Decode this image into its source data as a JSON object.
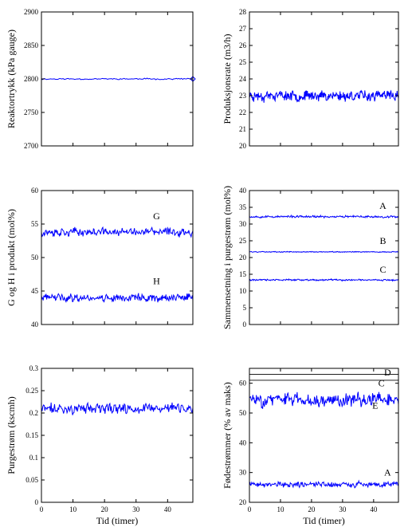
{
  "chart_data": [
    {
      "type": "line",
      "ylabel": "Reaktortrykk (kPa gauge)",
      "xlabel": "",
      "xlim": [
        0,
        48
      ],
      "ylim": [
        2700,
        2900
      ],
      "xticks": [
        0,
        10,
        20,
        30,
        40
      ],
      "xtick_labels": [
        "",
        "",
        "",
        "",
        ""
      ],
      "yticks": [
        2700,
        2750,
        2800,
        2850,
        2900
      ],
      "ytick_labels": [
        "2700",
        "2750",
        "2800",
        "2850",
        "2900"
      ],
      "series": [
        {
          "mean": 2800,
          "amp": 0.9,
          "points": 120,
          "seed": 11,
          "end_marker": "diamond"
        }
      ],
      "annotations": []
    },
    {
      "type": "line",
      "ylabel": "Produksjonsrate (m3/h)",
      "xlabel": "",
      "xlim": [
        0,
        48
      ],
      "ylim": [
        20,
        28
      ],
      "xticks": [
        0,
        10,
        20,
        30,
        40
      ],
      "xtick_labels": [
        "",
        "",
        "",
        "",
        ""
      ],
      "yticks": [
        20,
        21,
        22,
        23,
        24,
        25,
        26,
        27,
        28
      ],
      "ytick_labels": [
        "20",
        "21",
        "22",
        "23",
        "24",
        "25",
        "26",
        "27",
        "28"
      ],
      "series": [
        {
          "mean": 23.0,
          "amp": 0.28,
          "points": 320,
          "seed": 23
        }
      ],
      "annotations": []
    },
    {
      "type": "line",
      "ylabel": "G og H i produkt (mol%)",
      "xlabel": "",
      "xlim": [
        0,
        48
      ],
      "ylim": [
        40,
        60
      ],
      "xticks": [
        0,
        10,
        20,
        30,
        40
      ],
      "xtick_labels": [
        "",
        "",
        "",
        "",
        ""
      ],
      "yticks": [
        40,
        45,
        50,
        55,
        60
      ],
      "ytick_labels": [
        "40",
        "45",
        "50",
        "55",
        "60"
      ],
      "series": [
        {
          "mean": 53.8,
          "amp": 0.55,
          "points": 260,
          "seed": 37
        },
        {
          "mean": 44.0,
          "amp": 0.55,
          "points": 260,
          "seed": 41
        }
      ],
      "annotations": [
        {
          "text": "G",
          "x": 36.5,
          "y": 55.7
        },
        {
          "text": "H",
          "x": 36.5,
          "y": 46.0
        }
      ]
    },
    {
      "type": "line",
      "ylabel": "Sammensetning i purgestrøm (mol%)",
      "xlabel": "",
      "xlim": [
        0,
        48
      ],
      "ylim": [
        0,
        40
      ],
      "xticks": [
        0,
        10,
        20,
        30,
        40
      ],
      "xtick_labels": [
        "",
        "",
        "",
        "",
        ""
      ],
      "yticks": [
        0,
        5,
        10,
        15,
        20,
        25,
        30,
        35,
        40
      ],
      "ytick_labels": [
        "0",
        "5",
        "10",
        "15",
        "20",
        "25",
        "30",
        "35",
        "40"
      ],
      "series": [
        {
          "mean": 32.2,
          "amp": 0.28,
          "points": 300,
          "seed": 53
        },
        {
          "mean": 21.7,
          "amp": 0.12,
          "points": 300,
          "seed": 59
        },
        {
          "mean": 13.3,
          "amp": 0.22,
          "points": 300,
          "seed": 61
        }
      ],
      "annotations": [
        {
          "text": "A",
          "x": 43.0,
          "y": 34.5
        },
        {
          "text": "B",
          "x": 43.0,
          "y": 24.0
        },
        {
          "text": "C",
          "x": 43.0,
          "y": 15.5
        }
      ]
    },
    {
      "type": "line",
      "ylabel": "Purgestrøm (kscmh)",
      "xlabel": "Tid (timer)",
      "xlim": [
        0,
        48
      ],
      "ylim": [
        0,
        0.3
      ],
      "xticks": [
        0,
        10,
        20,
        30,
        40
      ],
      "xtick_labels": [
        "0",
        "10",
        "20",
        "30",
        "40"
      ],
      "yticks": [
        0,
        0.05,
        0.1,
        0.15,
        0.2,
        0.25,
        0.3
      ],
      "ytick_labels": [
        "0",
        "0.05",
        "0.1",
        "0.15",
        "0.2",
        "0.25",
        "0.3"
      ],
      "series": [
        {
          "mean": 0.21,
          "amp": 0.011,
          "points": 220,
          "seed": 71
        }
      ],
      "annotations": []
    },
    {
      "type": "line",
      "ylabel": "Fødestrømmer (% av maks)",
      "xlabel": "Tid (timer)",
      "xlim": [
        0,
        48
      ],
      "ylim": [
        20,
        65
      ],
      "xticks": [
        0,
        10,
        20,
        30,
        40
      ],
      "xtick_labels": [
        "0",
        "10",
        "20",
        "30",
        "40"
      ],
      "yticks": [
        20,
        30,
        40,
        50,
        60
      ],
      "ytick_labels": [
        "20",
        "30",
        "40",
        "50",
        "60"
      ],
      "series": [
        {
          "mean": 63.0,
          "amp": 0.0,
          "points": 2,
          "seed": 1,
          "color": "#000000"
        },
        {
          "mean": 61.0,
          "amp": 0.0,
          "points": 2,
          "seed": 2,
          "color": "#000000"
        },
        {
          "mean": 54.5,
          "amp": 2.0,
          "points": 260,
          "seed": 83
        },
        {
          "mean": 26.0,
          "amp": 0.9,
          "points": 260,
          "seed": 89
        }
      ],
      "annotations": [
        {
          "text": "D",
          "x": 44.5,
          "y": 62.6
        },
        {
          "text": "C",
          "x": 42.5,
          "y": 59.0
        },
        {
          "text": "E",
          "x": 40.5,
          "y": 51.5
        },
        {
          "text": "A",
          "x": 44.5,
          "y": 29.0
        }
      ]
    }
  ]
}
